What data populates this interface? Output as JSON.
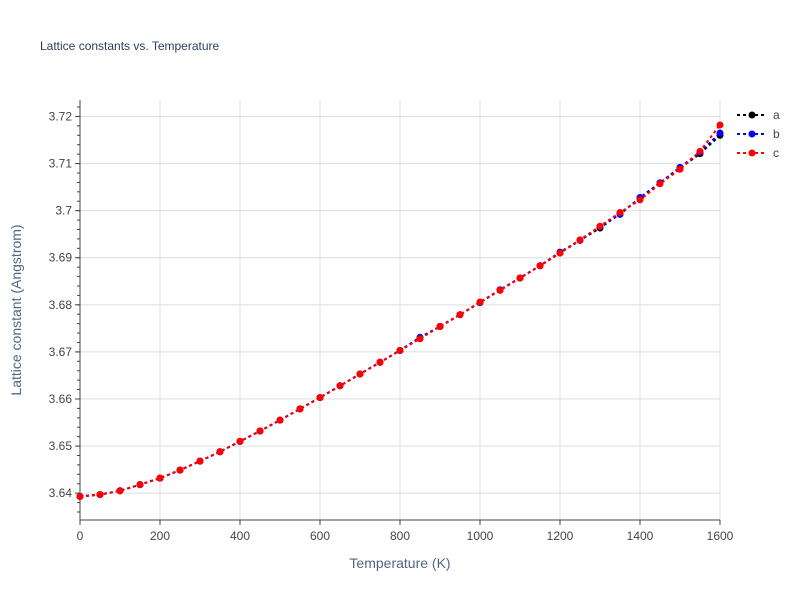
{
  "chart_data": {
    "type": "line",
    "title": "Lattice constants vs. Temperature",
    "xlabel": "Temperature (K)",
    "ylabel": "Lattice constant (Angstrom)",
    "xlim": [
      0,
      1600
    ],
    "ylim": [
      3.6343,
      3.7235
    ],
    "x_ticks": [
      0,
      200,
      400,
      600,
      800,
      1000,
      1200,
      1400,
      1600
    ],
    "x_tick_labels": [
      "0",
      "200",
      "400",
      "600",
      "800",
      "1000",
      "1200",
      "1400",
      "1600"
    ],
    "y_ticks": [
      3.64,
      3.65,
      3.66,
      3.67,
      3.68,
      3.69,
      3.7,
      3.71,
      3.72
    ],
    "y_tick_labels": [
      "3.64",
      "3.65",
      "3.66",
      "3.67",
      "3.68",
      "3.69",
      "3.7",
      "3.71",
      "3.72"
    ],
    "grid": true,
    "legend_position": "top-right",
    "x": [
      0,
      50,
      100,
      150,
      200,
      250,
      300,
      350,
      400,
      450,
      500,
      550,
      600,
      650,
      700,
      750,
      800,
      850,
      900,
      950,
      1000,
      1050,
      1100,
      1150,
      1200,
      1250,
      1300,
      1350,
      1400,
      1450,
      1500,
      1550,
      1600
    ],
    "series": [
      {
        "name": "a",
        "color": "#000000",
        "values": [
          3.6393,
          3.6397,
          3.6405,
          3.6418,
          3.6432,
          3.6449,
          3.6468,
          3.6488,
          3.651,
          3.6532,
          3.6555,
          3.6579,
          3.6603,
          3.6628,
          3.6653,
          3.6678,
          3.6703,
          3.6729,
          3.6754,
          3.6779,
          3.6805,
          3.6831,
          3.6857,
          3.6883,
          3.691,
          3.6937,
          3.6963,
          3.6994,
          3.7026,
          3.7059,
          3.709,
          3.7121,
          3.716
        ]
      },
      {
        "name": "b",
        "color": "#0000ff",
        "values": [
          3.6393,
          3.6397,
          3.6405,
          3.6418,
          3.6432,
          3.6449,
          3.6468,
          3.6488,
          3.651,
          3.6532,
          3.6555,
          3.6579,
          3.6603,
          3.6628,
          3.6653,
          3.6678,
          3.6703,
          3.6731,
          3.6754,
          3.6779,
          3.6805,
          3.6832,
          3.6857,
          3.6883,
          3.6912,
          3.6937,
          3.6966,
          3.6992,
          3.7028,
          3.7059,
          3.7092,
          3.7124,
          3.7165
        ]
      },
      {
        "name": "c",
        "color": "#ff0000",
        "values": [
          3.6393,
          3.6397,
          3.6405,
          3.6418,
          3.6432,
          3.6449,
          3.6468,
          3.6488,
          3.651,
          3.6532,
          3.6555,
          3.6579,
          3.6603,
          3.6628,
          3.6653,
          3.6678,
          3.6703,
          3.6728,
          3.6754,
          3.6779,
          3.6806,
          3.6831,
          3.6857,
          3.6883,
          3.691,
          3.6938,
          3.6967,
          3.6996,
          3.7023,
          3.7057,
          3.7088,
          3.7126,
          3.7182
        ]
      }
    ]
  }
}
